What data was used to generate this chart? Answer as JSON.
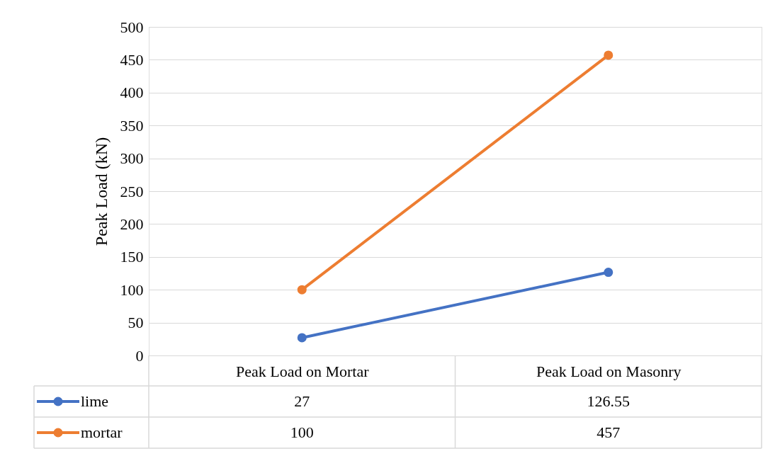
{
  "chart_data": {
    "type": "line",
    "ylabel": "Peak Load (kN)",
    "categories": [
      "Peak Load on Mortar",
      "Peak Load on Masonry"
    ],
    "series": [
      {
        "name": "lime",
        "color": "#4472c4",
        "values": [
          27,
          126.55
        ]
      },
      {
        "name": "mortar",
        "color": "#ed7d31",
        "values": [
          100,
          457
        ]
      }
    ],
    "ylim": [
      0,
      500
    ],
    "yticks": [
      0,
      50,
      100,
      150,
      200,
      250,
      300,
      350,
      400,
      450,
      500
    ],
    "grid": "y",
    "marker": "circle",
    "line_style": "solid",
    "data_labels": true,
    "legend": "bottom left"
  }
}
